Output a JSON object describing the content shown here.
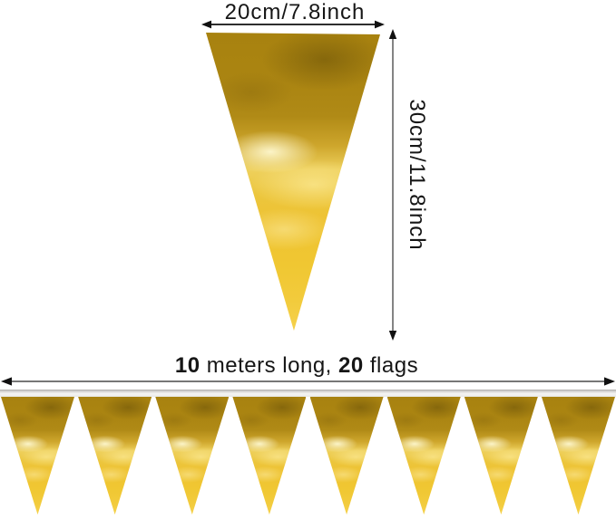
{
  "colors": {
    "gold_dark": "#a8820f",
    "gold_mid": "#cea62c",
    "gold_bright": "#f0c732",
    "gold_highlight": "#f7e386",
    "ribbon_gray": "#e9e8e6",
    "dimension_line": "#1c1c1c"
  },
  "top_flag": {
    "width_label": "20cm/7.8inch",
    "height_label": "30cm/11.8inch"
  },
  "banner": {
    "length_label": {
      "bold1": "10",
      "text1": " meters long, ",
      "bold2": "20",
      "text2": " flags"
    },
    "visible_flag_count": 8
  }
}
